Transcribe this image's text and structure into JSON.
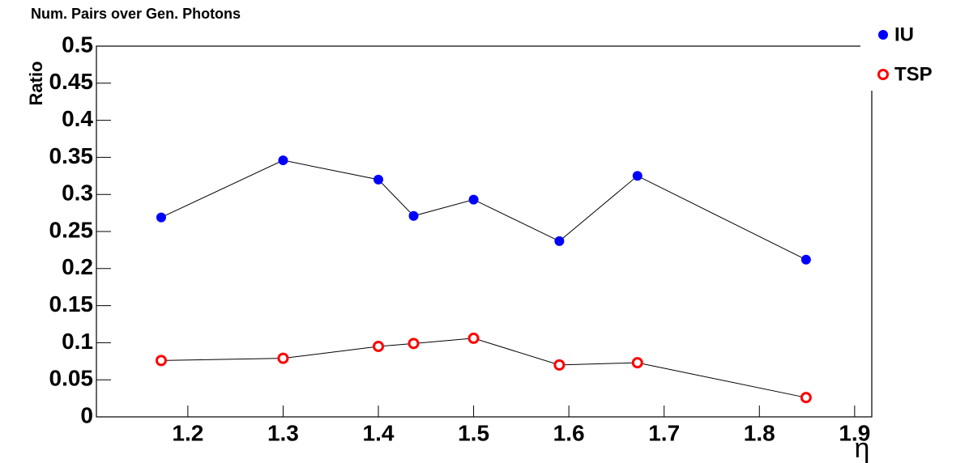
{
  "chart_data": {
    "type": "line",
    "title": "Num. Pairs over Gen. Photons",
    "x_label": "η",
    "y_label": "Ratio",
    "x": [
      1.172,
      1.3,
      1.4,
      1.437,
      1.5,
      1.59,
      1.672,
      1.849
    ],
    "series": [
      {
        "name": "IU",
        "color": "#0000ff",
        "marker": "filled",
        "values": [
          0.269,
          0.346,
          0.32,
          0.271,
          0.293,
          0.237,
          0.325,
          0.212
        ]
      },
      {
        "name": "TSP",
        "color": "#ff0000",
        "marker": "open",
        "values": [
          0.076,
          0.079,
          0.095,
          0.099,
          0.106,
          0.07,
          0.073,
          0.026
        ]
      }
    ],
    "xlim": [
      1.104,
      1.918
    ],
    "ylim": [
      0,
      0.5
    ],
    "xticks": [
      1.2,
      1.3,
      1.4,
      1.5,
      1.6,
      1.7,
      1.8,
      1.9
    ],
    "yticks": [
      0,
      0.05,
      0.1,
      0.15,
      0.2,
      0.25,
      0.3,
      0.35,
      0.4,
      0.45,
      0.5
    ],
    "grid": false
  }
}
